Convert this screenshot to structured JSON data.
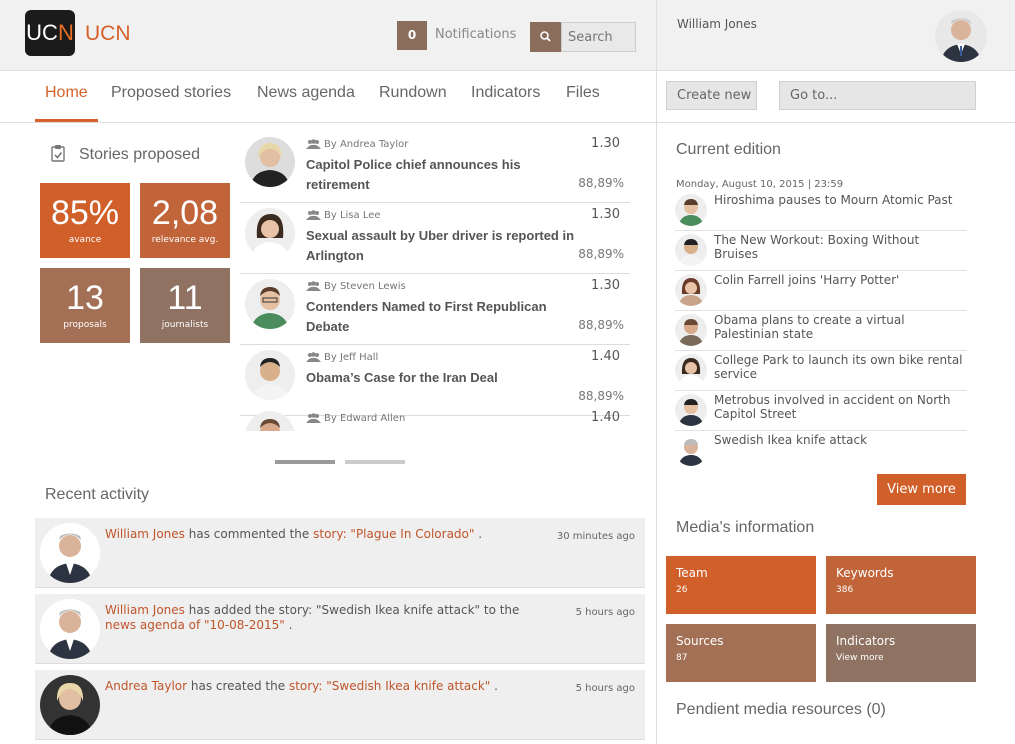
{
  "header": {
    "logo_text_a": "UC",
    "logo_text_b": "N",
    "brand": "UCN",
    "notifications_count": "0",
    "notifications_label": "Notifications",
    "search_placeholder": "Search",
    "user_name": "William Jones"
  },
  "nav": {
    "items": [
      "Home",
      "Proposed stories",
      "News agenda",
      "Rundown",
      "Indicators",
      "Files"
    ],
    "active": "Home"
  },
  "right_nav": {
    "create_new": "Create new",
    "go_to": "Go to..."
  },
  "stories_proposed": {
    "title": "Stories proposed",
    "tiles": [
      {
        "value": "85%",
        "label": "avance",
        "color": "#d15f2a"
      },
      {
        "value": "2,08",
        "label": "relevance avg.",
        "color": "#c1643a"
      },
      {
        "value": "13",
        "label": "proposals",
        "color": "#a36f55"
      },
      {
        "value": "11",
        "label": "journalists",
        "color": "#8f7262"
      }
    ]
  },
  "stories": [
    {
      "by": "By Andrea Taylor",
      "title": "Capitol Police chief announces his retirement",
      "score": "1.30",
      "pct": "88,89%"
    },
    {
      "by": "By Lisa Lee",
      "title": "Sexual assault by Uber driver is reported in Arlington",
      "score": "1.30",
      "pct": "88,89%"
    },
    {
      "by": "By Steven Lewis",
      "title": "Contenders Named to First Republican Debate",
      "score": "1.30",
      "pct": "88,89%"
    },
    {
      "by": "By Jeff Hall",
      "title": "Obama’s Case for the Iran Deal",
      "score": "1.40",
      "pct": "88,89%"
    },
    {
      "by": "By Edward Allen",
      "title": "",
      "score": "1.40",
      "pct": ""
    }
  ],
  "recent_activity": {
    "title": "Recent activity",
    "items": [
      {
        "actor": "William Jones",
        "text1": " has commented the ",
        "link": "story: \"Plague In Colorado\"",
        "text2": " .",
        "time": "30 minutes ago"
      },
      {
        "actor": "William Jones",
        "text1": " has added the story: \"Swedish Ikea knife attack\" to the ",
        "link": "news agenda of \"10-08-2015\"",
        "text2": " .",
        "time": "5 hours ago"
      },
      {
        "actor": "Andrea Taylor",
        "text1": " has created the ",
        "link": "story: \"Swedish Ikea knife attack\"",
        "text2": " .",
        "time": "5 hours ago"
      }
    ]
  },
  "current_edition": {
    "title": "Current edition",
    "date": "Monday, August 10, 2015 | 23:59",
    "items": [
      "Hiroshima pauses to Mourn Atomic Past",
      "The New Workout: Boxing Without Bruises",
      "Colin Farrell joins 'Harry Potter'",
      "Obama plans to create a virtual Palestinian state",
      "College Park to launch its own bike rental service",
      "Metrobus involved in accident on North Capitol Street",
      "Swedish Ikea knife attack"
    ],
    "view_more": "View more"
  },
  "media_info": {
    "title": "Media's information",
    "tiles": [
      {
        "label": "Team",
        "value": "26",
        "color": "#d15f2a"
      },
      {
        "label": "Keywords",
        "value": "386",
        "color": "#c1643a"
      },
      {
        "label": "Sources",
        "value": "87",
        "color": "#a36f55"
      },
      {
        "label": "Indicators",
        "value": "View more",
        "color": "#8f7262"
      }
    ]
  },
  "pendient": {
    "title": "Pendient media resources (0)"
  },
  "colors": {
    "accent": "#d6622a",
    "header_bg": "#f1f1f1"
  }
}
